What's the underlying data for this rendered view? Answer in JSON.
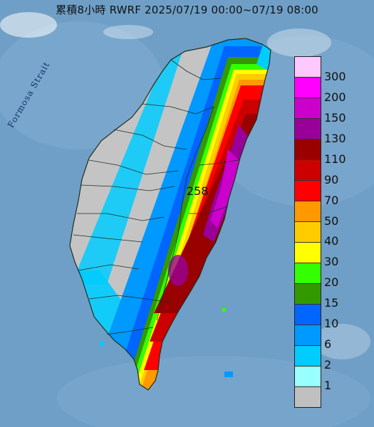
{
  "header": {
    "title": "累積8小時 RWRF 2025/07/19 00:00~07/19 08:00"
  },
  "map": {
    "strait_label": "Formosa Strait",
    "peak_value": "258"
  },
  "legend": {
    "items": [
      {
        "label": "300",
        "color": "#ffc8ff"
      },
      {
        "label": "200",
        "color": "#ff00ff"
      },
      {
        "label": "150",
        "color": "#cc00cc"
      },
      {
        "label": "130",
        "color": "#990099"
      },
      {
        "label": "110",
        "color": "#990000"
      },
      {
        "label": "90",
        "color": "#cc0000"
      },
      {
        "label": "70",
        "color": "#ff0000"
      },
      {
        "label": "50",
        "color": "#ff9900"
      },
      {
        "label": "40",
        "color": "#ffcc00"
      },
      {
        "label": "30",
        "color": "#ffff00"
      },
      {
        "label": "20",
        "color": "#33ff00"
      },
      {
        "label": "15",
        "color": "#339900"
      },
      {
        "label": "10",
        "color": "#0066ff"
      },
      {
        "label": "6",
        "color": "#0099ff"
      },
      {
        "label": "2",
        "color": "#00ccff"
      },
      {
        "label": "1",
        "color": "#99ffff"
      },
      {
        "label": "",
        "color": "#c0c0c0"
      }
    ]
  }
}
